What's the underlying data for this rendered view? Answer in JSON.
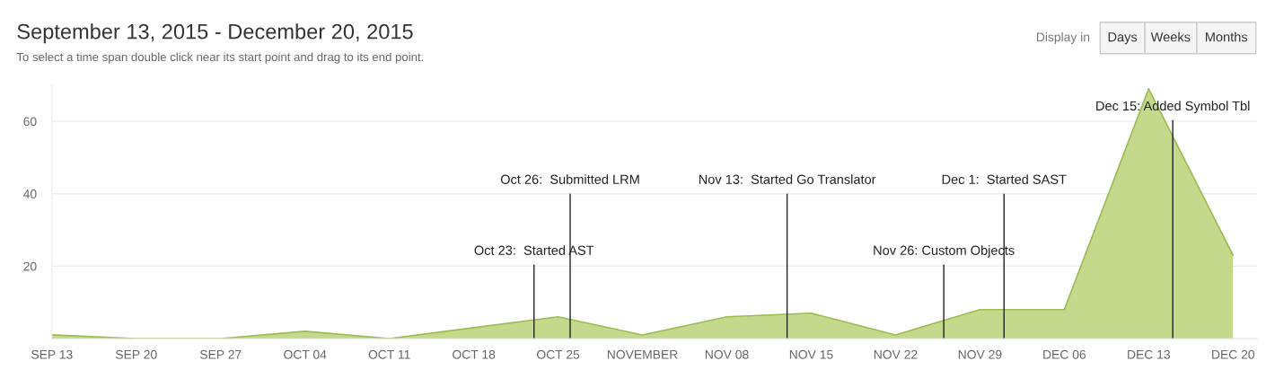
{
  "chart_data": {
    "type": "area",
    "title": "September 13, 2015 - December 20, 2015",
    "subtitle": "To select a time span double click near its start point and drag to its end point.",
    "x": [
      "2015-09-13",
      "2015-09-20",
      "2015-09-27",
      "2015-10-04",
      "2015-10-11",
      "2015-10-18",
      "2015-10-25",
      "2015-11-01",
      "2015-11-08",
      "2015-11-15",
      "2015-11-22",
      "2015-11-29",
      "2015-12-06",
      "2015-12-13",
      "2015-12-20"
    ],
    "series": [
      {
        "color": "#c5d98c",
        "values": [
          1,
          0,
          0,
          2,
          0,
          3,
          6,
          1,
          6,
          7,
          1,
          8,
          8,
          69,
          23
        ]
      }
    ],
    "xlim": [
      "2015-09-13",
      "2015-12-22"
    ],
    "xticks": [
      {
        "value": "2015-09-13",
        "label": "SEP 13"
      },
      {
        "value": "2015-09-20",
        "label": "SEP 20"
      },
      {
        "value": "2015-09-27",
        "label": "SEP 27"
      },
      {
        "value": "2015-10-04",
        "label": "OCT 04"
      },
      {
        "value": "2015-10-11",
        "label": "OCT 11"
      },
      {
        "value": "2015-10-18",
        "label": "OCT 18"
      },
      {
        "value": "2015-10-25",
        "label": "OCT 25"
      },
      {
        "value": "2015-11-01",
        "label": "NOVEMBER"
      },
      {
        "value": "2015-11-08",
        "label": "NOV 08"
      },
      {
        "value": "2015-11-15",
        "label": "NOV 15"
      },
      {
        "value": "2015-11-22",
        "label": "NOV 22"
      },
      {
        "value": "2015-11-29",
        "label": "NOV 29"
      },
      {
        "value": "2015-12-06",
        "label": "DEC 06"
      },
      {
        "value": "2015-12-13",
        "label": "DEC 13"
      },
      {
        "value": "2015-12-20",
        "label": "DEC 20"
      }
    ],
    "ylim": [
      0,
      70
    ],
    "yticks": [
      20,
      40,
      60
    ],
    "grid": "y",
    "legend": false,
    "ref_lines": [
      {
        "axis": "x",
        "value": "2015-10-23",
        "label": "Oct 23:  Started AST"
      },
      {
        "axis": "x",
        "value": "2015-10-26",
        "label": "Oct 26:  Submitted LRM"
      },
      {
        "axis": "x",
        "value": "2015-11-13",
        "label": "Nov 13:  Started Go Translator"
      },
      {
        "axis": "x",
        "value": "2015-11-26",
        "label": "Nov 26: Custom Objects"
      },
      {
        "axis": "x",
        "value": "2015-12-01",
        "label": "Dec 1:  Started SAST"
      },
      {
        "axis": "x",
        "value": "2015-12-15",
        "label": "Dec 15: Added Symbol Tbl"
      }
    ],
    "annotations": [
      "Display in",
      "Days",
      "Weeks",
      "Months"
    ]
  }
}
